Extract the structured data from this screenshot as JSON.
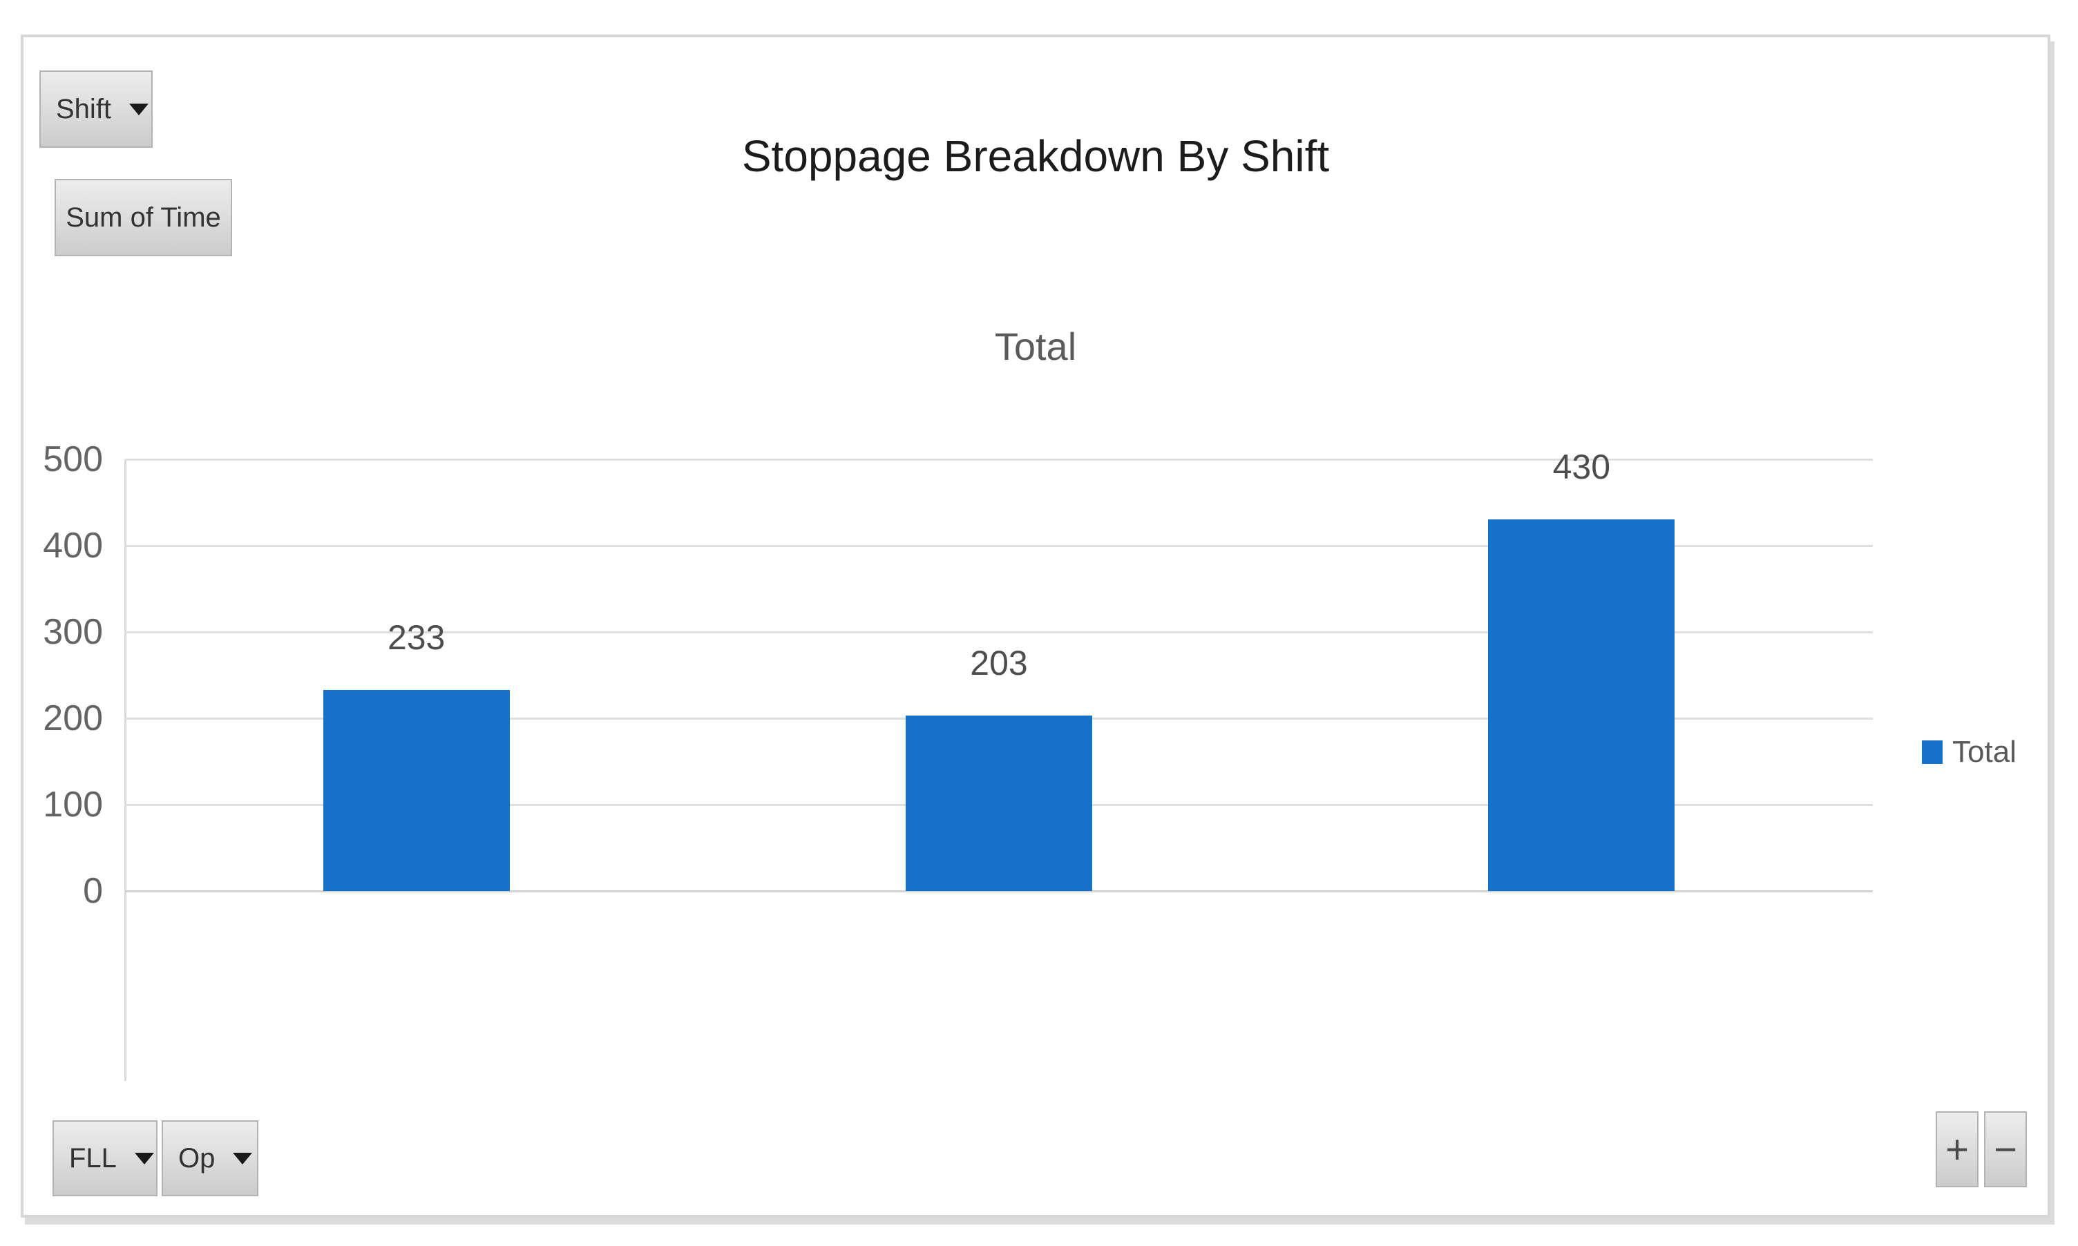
{
  "chart_data": {
    "type": "bar",
    "title": "Stoppage Breakdown By Shift",
    "subtitle": "Total",
    "categories": [
      "",
      "",
      ""
    ],
    "series": [
      {
        "name": "Total",
        "values": [
          233,
          203,
          430
        ]
      }
    ],
    "data_labels": [
      "233",
      "203",
      "430"
    ],
    "ylim": [
      0,
      500
    ],
    "yticks": [
      "0",
      "100",
      "200",
      "300",
      "400",
      "500"
    ],
    "grid": "horizontal",
    "legend_position": "right",
    "bar_color": "#1572C8"
  },
  "legend": {
    "label": "Total"
  },
  "pivot_buttons": {
    "axis_field": {
      "label": "Shift",
      "icon": "triangle-down"
    },
    "value_field": {
      "label": "Sum of Time"
    },
    "filter_fields": [
      {
        "label": "FLL",
        "icon": "triangle-down"
      },
      {
        "label": "Op",
        "icon": "triangle-down"
      }
    ],
    "expand_label": "+",
    "collapse_label": "−"
  },
  "colors": {
    "bar": "#1572C8",
    "gridline": "#DEDEDE",
    "axis_line": "#D9D9D9",
    "tick_label": "#646464",
    "data_label": "#4D4D4D",
    "title": "#1C1C1C",
    "subtitle": "#5B5B5B",
    "button_border": "#B3B3B3",
    "frame_border": "#D6D6D6"
  }
}
